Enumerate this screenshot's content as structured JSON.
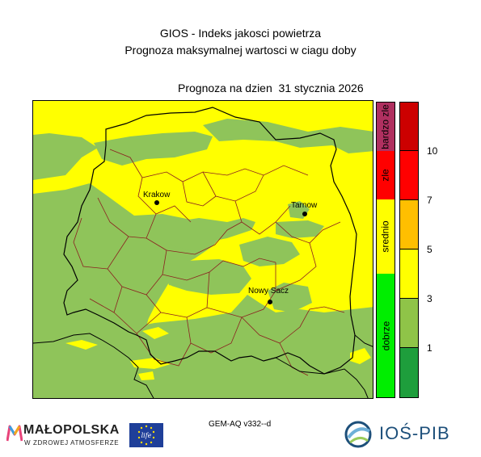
{
  "title": "GIOS - Indeks jakosci powietrza",
  "subtitle": "Prognoza maksymalnej wartosci w ciagu doby",
  "forecast_date_label": "Prognoza na dzien  31 stycznia 2026",
  "model": "GEM-AQ v332--d",
  "cities": [
    {
      "name": "Krakow"
    },
    {
      "name": "Tarnow"
    },
    {
      "name": "Nowy Sacz"
    }
  ],
  "categories": [
    {
      "label": "bardzo zle",
      "color": "#b03060"
    },
    {
      "label": "zle",
      "color": "#ff0000"
    },
    {
      "label": "srednio",
      "color": "#ffff00"
    },
    {
      "label": "dobrze",
      "color": "#00ee00"
    }
  ],
  "scale_colors": [
    "#cc0000",
    "#ff0000",
    "#ffbf00",
    "#ffff00",
    "#8fc448",
    "#1e9e3c"
  ],
  "scale_ticks": [
    "10",
    "7",
    "5",
    "3",
    "1"
  ],
  "map_colors": {
    "yellow": "#ffff00",
    "green": "#8fc45a",
    "district_border": "#8b2020",
    "voivodeship_border": "#000000"
  },
  "logos": {
    "malopolska": "MAŁOPOLSKA",
    "malopolska_sub": "W ZDROWEJ ATMOSFERZE",
    "eu_flag": "eu-flag-life",
    "life": "life",
    "iospib": "IOŚ-PIB"
  }
}
